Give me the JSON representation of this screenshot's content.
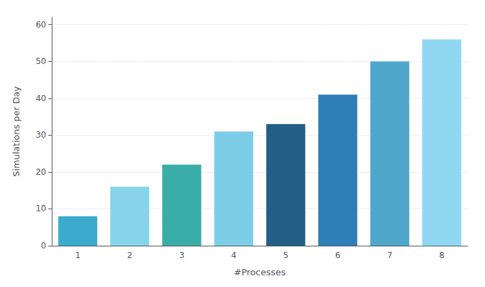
{
  "chart_data": {
    "type": "bar",
    "categories": [
      1,
      2,
      3,
      4,
      5,
      6,
      7,
      8
    ],
    "values": [
      8,
      16,
      22,
      31,
      33,
      41,
      50,
      56
    ],
    "colors": [
      "#3aabcc",
      "#87d4ea",
      "#3aada8",
      "#7ecde8",
      "#235f85",
      "#2e7eb8",
      "#4fa8cc",
      "#90d8f2"
    ],
    "xlabel": "#Processes",
    "ylabel": "Simulations per Day",
    "ylim": [
      0,
      62
    ],
    "yticks": [
      0,
      10,
      20,
      30,
      40,
      50,
      60
    ],
    "grid": true
  }
}
